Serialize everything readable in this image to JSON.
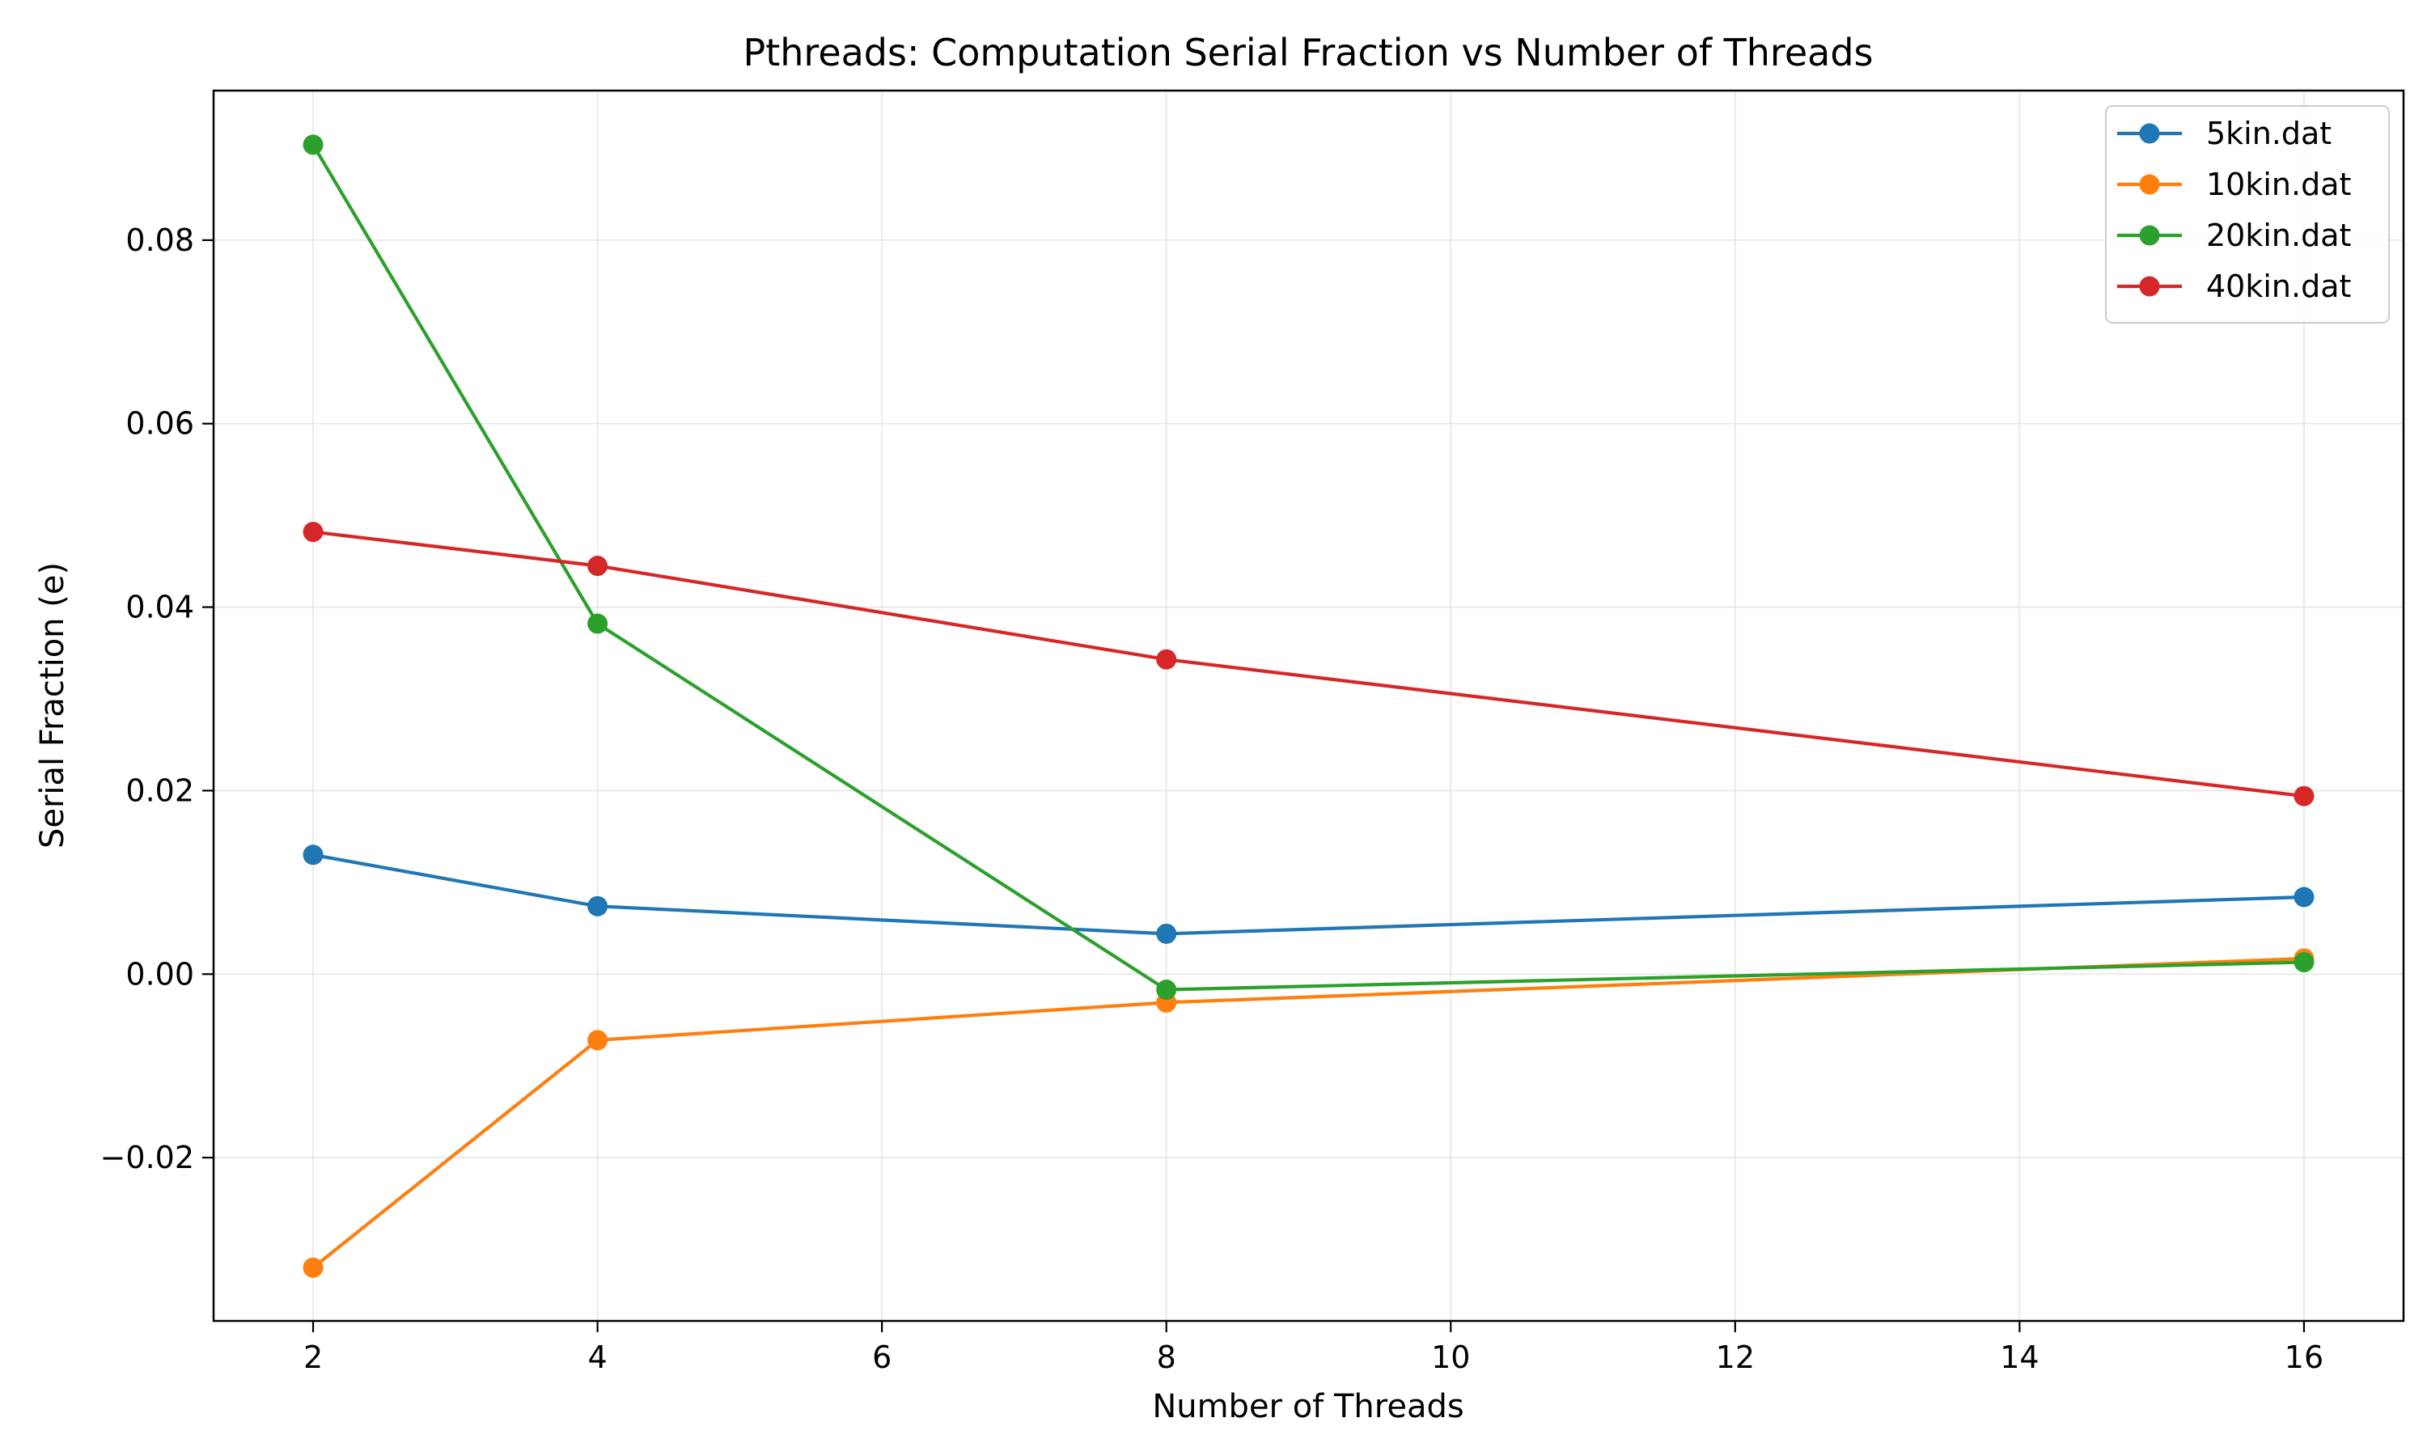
{
  "chart_data": {
    "type": "line",
    "title": "Pthreads: Computation Serial Fraction vs Number of Threads",
    "xlabel": "Number of Threads",
    "ylabel": "Serial Fraction (e)",
    "xlim": [
      1.3,
      16.7
    ],
    "ylim": [
      -0.0378,
      0.0963
    ],
    "xticks": [
      2,
      4,
      6,
      8,
      10,
      12,
      14,
      16
    ],
    "xtick_labels": [
      "2",
      "4",
      "6",
      "8",
      "10",
      "12",
      "14",
      "16"
    ],
    "yticks": [
      -0.02,
      0.0,
      0.02,
      0.04,
      0.06,
      0.08
    ],
    "ytick_labels": [
      "−0.02",
      "0.00",
      "0.02",
      "0.04",
      "0.06",
      "0.08"
    ],
    "grid": true,
    "legend_position": "top-right",
    "x": [
      2,
      4,
      8,
      16
    ],
    "series": [
      {
        "name": "5kin.dat",
        "color": "#1f77b4",
        "values": [
          0.013,
          0.0074,
          0.0044,
          0.0084
        ]
      },
      {
        "name": "10kin.dat",
        "color": "#ff7f0e",
        "values": [
          -0.032,
          -0.0072,
          -0.0031,
          0.0017
        ]
      },
      {
        "name": "20kin.dat",
        "color": "#2ca02c",
        "values": [
          0.0904,
          0.0382,
          -0.0017,
          0.0013
        ]
      },
      {
        "name": "40kin.dat",
        "color": "#d62728",
        "values": [
          0.0482,
          0.0445,
          0.0343,
          0.0194
        ]
      }
    ]
  }
}
